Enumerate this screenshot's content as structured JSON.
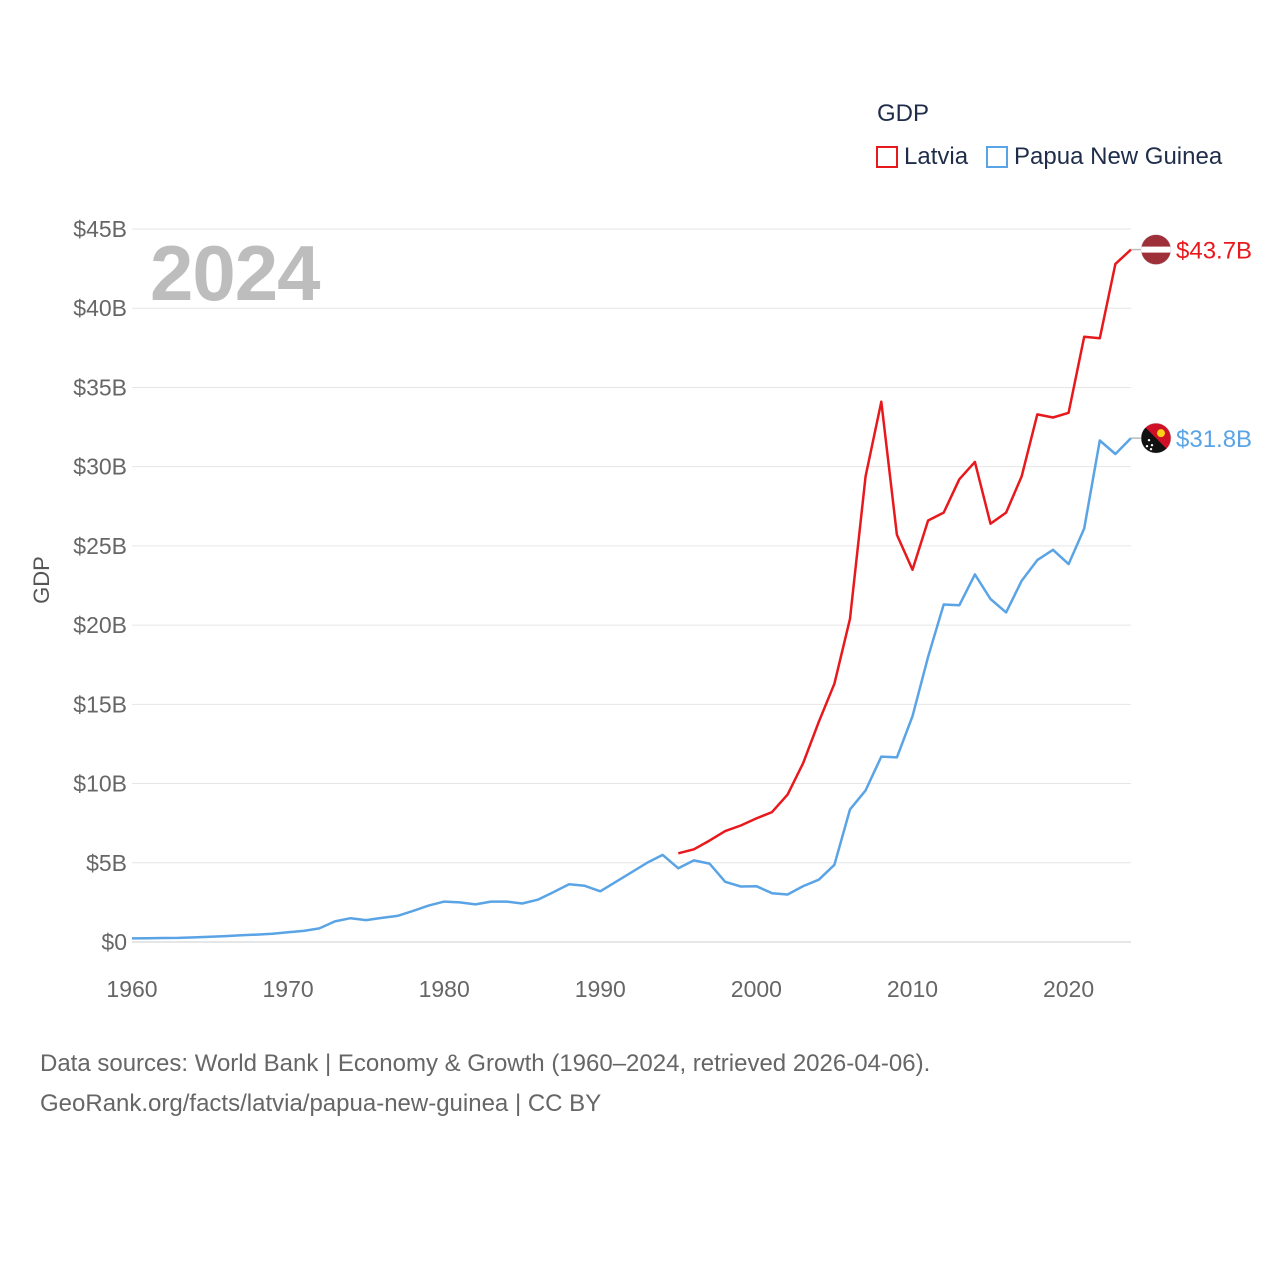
{
  "legend": {
    "title": "GDP",
    "items": [
      {
        "label": "Latvia",
        "color": "#e8191d"
      },
      {
        "label": "Papua New Guinea",
        "color": "#5aa4e6"
      }
    ]
  },
  "year_label": "2024",
  "source": {
    "line1": "Data sources: World Bank | Economy & Growth (1960–2024, retrieved 2026-04-06).",
    "line2": "GeoRank.org/facts/latvia/papua-new-guinea | CC BY"
  },
  "chart_data": {
    "type": "line",
    "title": "GDP",
    "xlabel": "",
    "ylabel": "GDP",
    "xlim": [
      1960,
      2024
    ],
    "ylim": [
      0,
      45
    ],
    "x_ticks": [
      1960,
      1970,
      1980,
      1990,
      2000,
      2010,
      2020
    ],
    "x_tick_labels": [
      "1960",
      "1970",
      "1980",
      "1990",
      "2000",
      "2010",
      "2020"
    ],
    "y_ticks": [
      0,
      5,
      10,
      15,
      20,
      25,
      30,
      35,
      40,
      45
    ],
    "y_tick_labels": [
      "$0",
      "$5B",
      "$10B",
      "$15B",
      "$20B",
      "$25B",
      "$30B",
      "$35B",
      "$40B",
      "$45B"
    ],
    "grid": true,
    "series": [
      {
        "name": "Latvia",
        "color": "#e8191d",
        "end_label": "$43.7B",
        "flag": "latvia-flag",
        "points": [
          [
            1995,
            5.6
          ],
          [
            1996,
            5.85
          ],
          [
            1997,
            6.4
          ],
          [
            1998,
            7.0
          ],
          [
            1999,
            7.35
          ],
          [
            2000,
            7.8
          ],
          [
            2001,
            8.2
          ],
          [
            2002,
            9.3
          ],
          [
            2003,
            11.3
          ],
          [
            2004,
            13.9
          ],
          [
            2005,
            16.3
          ],
          [
            2006,
            20.4
          ],
          [
            2007,
            29.4
          ],
          [
            2008,
            34.1
          ],
          [
            2009,
            25.7
          ],
          [
            2010,
            23.5
          ],
          [
            2011,
            26.6
          ],
          [
            2012,
            27.1
          ],
          [
            2013,
            29.2
          ],
          [
            2014,
            30.3
          ],
          [
            2015,
            26.4
          ],
          [
            2016,
            27.1
          ],
          [
            2017,
            29.4
          ],
          [
            2018,
            33.3
          ],
          [
            2019,
            33.1
          ],
          [
            2020,
            33.4
          ],
          [
            2021,
            38.2
          ],
          [
            2022,
            38.1
          ],
          [
            2023,
            42.8
          ],
          [
            2024,
            43.7
          ]
        ]
      },
      {
        "name": "Papua New Guinea",
        "color": "#5aa4e6",
        "end_label": "$31.8B",
        "flag": "papua-new-guinea-flag",
        "points": [
          [
            1960,
            0.23
          ],
          [
            1961,
            0.24
          ],
          [
            1962,
            0.25
          ],
          [
            1963,
            0.26
          ],
          [
            1964,
            0.29
          ],
          [
            1965,
            0.33
          ],
          [
            1966,
            0.37
          ],
          [
            1967,
            0.42
          ],
          [
            1968,
            0.47
          ],
          [
            1969,
            0.52
          ],
          [
            1970,
            0.62
          ],
          [
            1971,
            0.7
          ],
          [
            1972,
            0.86
          ],
          [
            1973,
            1.3
          ],
          [
            1974,
            1.5
          ],
          [
            1975,
            1.38
          ],
          [
            1976,
            1.52
          ],
          [
            1977,
            1.65
          ],
          [
            1978,
            1.96
          ],
          [
            1979,
            2.3
          ],
          [
            1980,
            2.55
          ],
          [
            1981,
            2.5
          ],
          [
            1982,
            2.37
          ],
          [
            1983,
            2.55
          ],
          [
            1984,
            2.55
          ],
          [
            1985,
            2.43
          ],
          [
            1986,
            2.67
          ],
          [
            1987,
            3.15
          ],
          [
            1988,
            3.65
          ],
          [
            1989,
            3.55
          ],
          [
            1990,
            3.2
          ],
          [
            1991,
            3.8
          ],
          [
            1992,
            4.4
          ],
          [
            1993,
            5.0
          ],
          [
            1994,
            5.5
          ],
          [
            1995,
            4.65
          ],
          [
            1996,
            5.15
          ],
          [
            1997,
            4.95
          ],
          [
            1998,
            3.8
          ],
          [
            1999,
            3.5
          ],
          [
            2000,
            3.52
          ],
          [
            2001,
            3.08
          ],
          [
            2002,
            3.0
          ],
          [
            2003,
            3.53
          ],
          [
            2004,
            3.93
          ],
          [
            2005,
            4.87
          ],
          [
            2006,
            8.37
          ],
          [
            2007,
            9.57
          ],
          [
            2008,
            11.7
          ],
          [
            2009,
            11.65
          ],
          [
            2010,
            14.25
          ],
          [
            2011,
            18.0
          ],
          [
            2012,
            21.3
          ],
          [
            2013,
            21.25
          ],
          [
            2014,
            23.2
          ],
          [
            2015,
            21.65
          ],
          [
            2016,
            20.8
          ],
          [
            2017,
            22.8
          ],
          [
            2018,
            24.1
          ],
          [
            2019,
            24.75
          ],
          [
            2020,
            23.85
          ],
          [
            2021,
            26.1
          ],
          [
            2022,
            31.65
          ],
          [
            2023,
            30.8
          ],
          [
            2024,
            31.8
          ]
        ]
      }
    ]
  }
}
